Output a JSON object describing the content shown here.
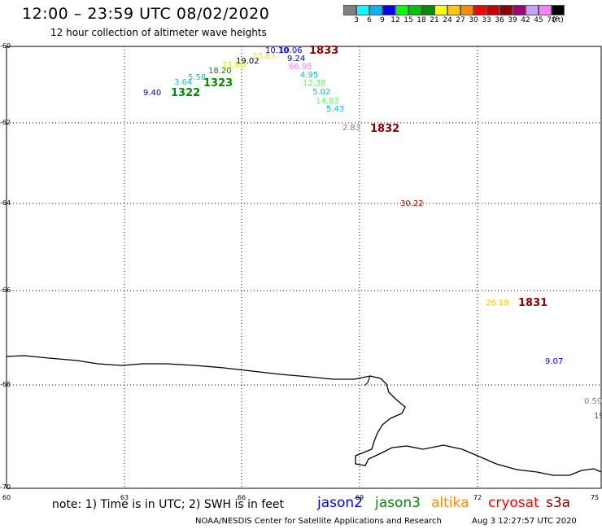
{
  "title": "12:00 – 23:59 UTC 08/02/2020",
  "subtitle": "12 hour collection of altimeter wave heights",
  "legend": {
    "colors": [
      "#808080",
      "#00ffff",
      "#00b4ff",
      "#0000ff",
      "#00ff00",
      "#00c800",
      "#008c00",
      "#ffff00",
      "#ffc800",
      "#ff8c00",
      "#ff0000",
      "#c80000",
      "#8c0000",
      "#a0007c",
      "#c8a0ff",
      "#ff80ff",
      "#000000"
    ],
    "labels": [
      "3",
      "6",
      "9",
      "12",
      "15",
      "18",
      "21",
      "24",
      "27",
      "30",
      "33",
      "36",
      "39",
      "42",
      "45",
      "70"
    ],
    "unit": "(ft)"
  },
  "axes": {
    "y_labels": [
      "-60",
      "-62",
      "-64",
      "-66",
      "-68",
      "-70"
    ],
    "x_labels": [
      "60",
      "63",
      "66",
      "69",
      "72",
      "75"
    ]
  },
  "wave_labels": [
    {
      "text": "9.40",
      "color": "#0000b0"
    },
    {
      "text": "3.64",
      "color": "#00c8c8"
    },
    {
      "text": "5.58",
      "color": "#00c8c8"
    },
    {
      "text": "18.20",
      "color": "#008c00"
    },
    {
      "text": "21.80",
      "color": "#e6e600"
    },
    {
      "text": "19.02",
      "color": "#000000"
    },
    {
      "text": "23.83",
      "color": "#e6e600"
    },
    {
      "text": "10.10",
      "color": "#0000ff"
    },
    {
      "text": "10.06",
      "color": "#0000ff"
    },
    {
      "text": "9.24",
      "color": "#0000b0"
    },
    {
      "text": "66.95",
      "color": "#ff80ff"
    },
    {
      "text": "4.95",
      "color": "#00c8c8"
    },
    {
      "text": "12.38",
      "color": "#66ff66"
    },
    {
      "text": "5.02",
      "color": "#00c8c8"
    },
    {
      "text": "14.83",
      "color": "#66ff66"
    },
    {
      "text": "5.43",
      "color": "#00c8c8"
    },
    {
      "text": "2.83",
      "color": "#808080"
    },
    {
      "text": "30.22",
      "color": "#e00000"
    },
    {
      "text": "26.19",
      "color": "#ffc800"
    },
    {
      "text": "9.07",
      "color": "#0000ff"
    },
    {
      "text": "0.59",
      "color": "#808080"
    },
    {
      "text": "19",
      "color": "#008c00"
    }
  ],
  "time_labels": [
    {
      "text": "1322",
      "color": "#008c00"
    },
    {
      "text": "1323",
      "color": "#008c00"
    },
    {
      "text": "1833",
      "color": "#8c0000"
    },
    {
      "text": "1832",
      "color": "#8c0000"
    },
    {
      "text": "1831",
      "color": "#8c0000"
    }
  ],
  "footer": {
    "note": "note:  1) Time is in UTC;  2) SWH is in feet",
    "satellites": [
      {
        "name": "jason2",
        "color": "#0000ff"
      },
      {
        "name": "jason3",
        "color": "#008c00"
      },
      {
        "name": "altika",
        "color": "#ff8c00"
      },
      {
        "name": "cryosat",
        "color": "#ff0000"
      },
      {
        "name": "s3a",
        "color": "#8c0000"
      }
    ],
    "credit": "NOAA/NESDIS Center for Satellite Applications and Research",
    "stamp": "Aug  3 12:27:57 UTC 2020"
  }
}
